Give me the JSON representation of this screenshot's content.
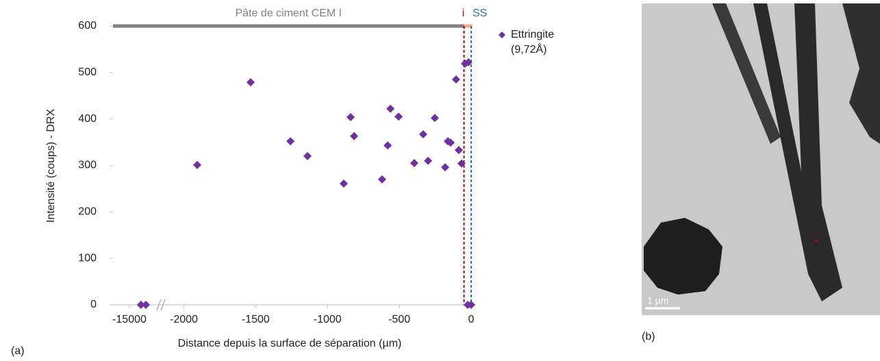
{
  "chart_data": {
    "type": "scatter",
    "y_label": "Intensité (coups) - DRX",
    "x_label": "Distance depuis la surface de séparation (µm)",
    "panel_label": "(a)",
    "xlim": [
      -15100,
      0
    ],
    "xbreak": [
      -14800,
      -2150
    ],
    "xticks": [
      -15000,
      -2000,
      -1500,
      -1000,
      -500,
      0
    ],
    "ylim": [
      0,
      600
    ],
    "yticks": [
      0,
      100,
      200,
      300,
      400,
      500,
      600
    ],
    "grid": false,
    "legend": "right",
    "zone": {
      "label": "Pâte de ciment CEM I",
      "color": "#808080",
      "between_color": "#f4b183"
    },
    "interfaces": [
      {
        "label": "i",
        "x": -50,
        "color": "#c00000"
      },
      {
        "label": "SS",
        "x": 0,
        "color": "#2e75b6"
      }
    ],
    "series": [
      {
        "name": "Ettringite (9,72Å)",
        "color": "#7030a0",
        "x": [
          -14930,
          -14900,
          -1535,
          -1907,
          -1258,
          -1139,
          -887,
          -839,
          -815,
          -620,
          -562,
          -505,
          -581,
          -396,
          -334,
          -300,
          -253,
          -181,
          -162,
          -143,
          -105,
          -86,
          -67,
          -43,
          -19,
          -24,
          0
        ],
        "values": [
          0,
          0,
          479,
          301,
          352,
          320,
          261,
          404,
          363,
          270,
          422,
          405,
          343,
          305,
          367,
          310,
          402,
          296,
          352,
          349,
          485,
          333,
          304,
          519,
          522,
          0,
          0
        ]
      }
    ]
  },
  "image": {
    "panel_label": "(b)",
    "scale_label": "1 µm"
  }
}
